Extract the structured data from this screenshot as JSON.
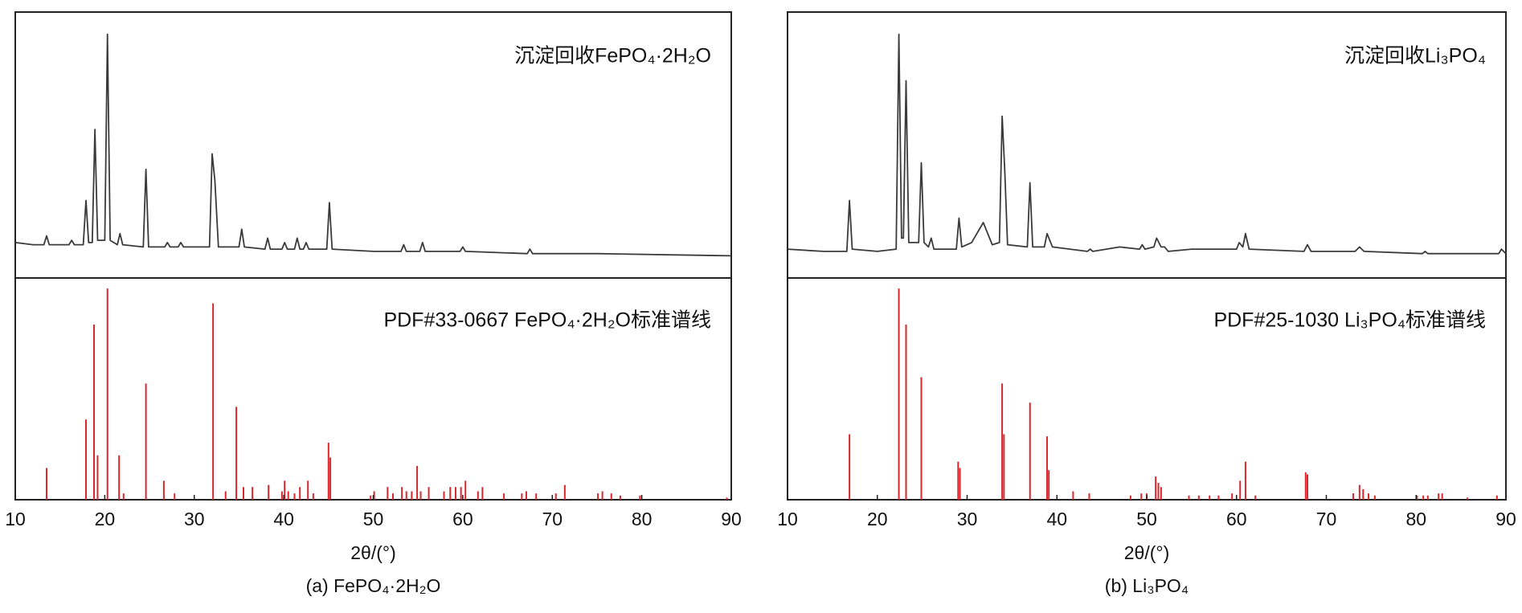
{
  "chart_data": [
    {
      "type": "xrd",
      "xlabel": "2θ/(°)",
      "caption": "(a) FePO₄·2H₂O",
      "xlim": [
        10,
        90
      ],
      "xticks": [
        10,
        20,
        30,
        40,
        50,
        60,
        70,
        80,
        90
      ],
      "measured": {
        "label": "沉淀回收FePO₄·2H₂O",
        "color": "#3a3a3a",
        "ylim": [
          -10,
          110
        ],
        "x": [
          10,
          12,
          13.2,
          13.5,
          13.8,
          15,
          16,
          16.3,
          16.6,
          17.6,
          17.9,
          18.2,
          18.6,
          18.9,
          19.2,
          20.0,
          20.3,
          20.6,
          21.4,
          21.7,
          22,
          24.3,
          24.6,
          24.9,
          26.7,
          27,
          27.3,
          28.2,
          28.5,
          28.8,
          31.7,
          32.0,
          32.3,
          32.7,
          35.0,
          35.3,
          35.6,
          37.9,
          38.2,
          38.5,
          39.8,
          40.1,
          40.4,
          41.2,
          41.5,
          41.8,
          42.2,
          42.5,
          42.8,
          44.8,
          45.1,
          45.4,
          50,
          53.1,
          53.4,
          53.7,
          55.2,
          55.5,
          55.8,
          59.7,
          60,
          60.3,
          67.2,
          67.5,
          67.8,
          75,
          90
        ],
        "values": [
          6,
          5,
          5,
          9,
          5,
          5,
          5,
          7,
          5,
          5,
          25,
          6,
          6,
          57,
          7,
          7,
          100,
          7,
          5,
          10,
          5,
          4,
          39,
          4,
          4,
          6,
          4,
          4,
          6,
          4,
          4,
          46,
          34,
          4,
          4,
          12,
          4,
          3,
          8,
          3,
          3,
          6,
          3,
          3,
          8,
          3,
          3,
          6,
          3,
          3,
          24,
          3,
          2,
          2,
          5,
          2,
          2,
          6,
          2,
          2,
          4,
          2,
          1,
          3,
          1,
          1,
          0
        ]
      },
      "reference": {
        "label": "PDF#33-0667 FePO₄·2H₂O标准谱线",
        "color": "#d9272e",
        "ylim": [
          0,
          105
        ],
        "x": [
          13.5,
          17.9,
          18.8,
          19.2,
          20.3,
          21.6,
          22.1,
          24.6,
          26.6,
          27.8,
          32.1,
          33.5,
          34.7,
          35.5,
          36.5,
          38.3,
          39.8,
          40.1,
          40.5,
          41.2,
          41.8,
          42.7,
          43.3,
          45.0,
          45.2,
          49.7,
          50.1,
          51.6,
          52.2,
          53.2,
          53.7,
          54.3,
          54.9,
          55.3,
          56.2,
          57.9,
          58.6,
          59.2,
          59.8,
          60.3,
          61.7,
          62.2,
          64.6,
          66.6,
          67.1,
          68.2,
          70.4,
          71.4,
          75.1,
          75.6,
          76.6,
          77.6,
          79.8,
          89.5
        ],
        "values": [
          15,
          38,
          83,
          21,
          100,
          21,
          3,
          55,
          9,
          3,
          93,
          4,
          44,
          6,
          6,
          7,
          4,
          9,
          4,
          3,
          6,
          9,
          3,
          27,
          20,
          2,
          4,
          6,
          3,
          6,
          4,
          4,
          16,
          4,
          6,
          4,
          6,
          6,
          6,
          9,
          4,
          6,
          3,
          3,
          4,
          3,
          3,
          7,
          3,
          4,
          3,
          2,
          2,
          1
        ]
      }
    },
    {
      "type": "xrd",
      "xlabel": "2θ/(°)",
      "caption": "(b) Li₃PO₄",
      "xlim": [
        10,
        90
      ],
      "xticks": [
        10,
        20,
        30,
        40,
        50,
        60,
        70,
        80,
        90
      ],
      "measured": {
        "label": "沉淀回收Li₃PO₄",
        "color": "#3a3a3a",
        "ylim": [
          -10,
          110
        ],
        "x": [
          10,
          14,
          16.6,
          16.9,
          17.2,
          20,
          22.1,
          22.4,
          22.7,
          22.9,
          23.2,
          23.5,
          24.6,
          24.9,
          25.2,
          25.7,
          26,
          26.3,
          28.8,
          29.1,
          29.4,
          30.5,
          31.8,
          32.8,
          33.6,
          33.9,
          34.2,
          34.5,
          36.7,
          37,
          37.3,
          38.6,
          38.9,
          39.5,
          43.4,
          43.7,
          44,
          47,
          49.2,
          49.5,
          49.8,
          50.8,
          51.1,
          51.6,
          52,
          52.4,
          55,
          60,
          60.3,
          60.7,
          61,
          61.4,
          67.5,
          67.9,
          68.3,
          73.2,
          73.7,
          74.2,
          80.7,
          81,
          81.3,
          89.2,
          89.5,
          90
        ],
        "values": [
          3,
          2,
          2,
          25,
          3,
          2,
          3,
          100,
          8,
          8,
          79,
          6,
          6,
          42,
          6,
          4,
          8,
          3,
          3,
          17,
          4,
          6,
          15,
          5,
          6,
          63,
          38,
          5,
          4,
          33,
          4,
          4,
          10,
          4,
          2,
          3,
          2,
          4,
          3,
          5,
          3,
          4,
          8,
          4,
          4,
          2,
          3,
          3,
          6,
          4,
          10,
          3,
          2,
          5,
          2,
          2,
          4,
          2,
          1,
          2,
          1,
          1,
          3,
          1
        ]
      },
      "reference": {
        "label": "PDF#25-1030 Li₃PO₄标准谱线",
        "color": "#d9272e",
        "ylim": [
          0,
          105
        ],
        "x": [
          16.9,
          22.4,
          23.2,
          24.9,
          29.0,
          29.2,
          33.9,
          34.1,
          37.0,
          38.9,
          39.1,
          41.8,
          43.6,
          48.2,
          49.4,
          50.0,
          51.0,
          51.3,
          51.6,
          54.7,
          55.8,
          57.0,
          58.0,
          59.5,
          60.4,
          61.0,
          62.1,
          67.7,
          67.9,
          73.0,
          73.7,
          74.1,
          74.7,
          75.4,
          80.1,
          80.8,
          81.3,
          82.5,
          82.9,
          85.7,
          89.0
        ],
        "values": [
          31,
          100,
          83,
          58,
          18,
          15,
          55,
          31,
          46,
          30,
          14,
          4,
          3,
          2,
          3,
          3,
          11,
          8,
          6,
          2,
          2,
          2,
          2,
          3,
          9,
          18,
          2,
          13,
          12,
          3,
          7,
          5,
          3,
          2,
          2,
          2,
          2,
          3,
          3,
          1,
          2
        ]
      }
    }
  ]
}
